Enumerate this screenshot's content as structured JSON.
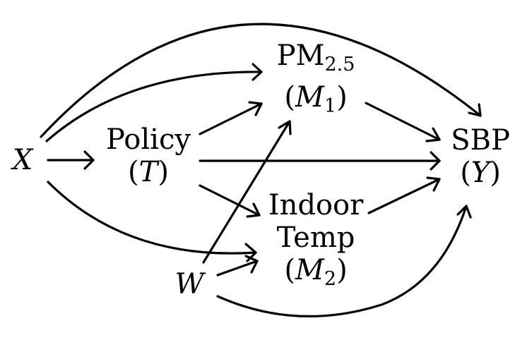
{
  "nodes": {
    "x": {
      "label": "X"
    },
    "t": {
      "line1": "Policy",
      "sym": "T"
    },
    "m1": {
      "base": "PM",
      "sub": "2.5",
      "sym": "M",
      "sym_sub": "1"
    },
    "m2": {
      "line1": "Indoor",
      "line2": "Temp",
      "sym": "M",
      "sym_sub": "2"
    },
    "y": {
      "line1": "SBP",
      "sym": "Y"
    },
    "w": {
      "label": "W"
    }
  },
  "edges": [
    {
      "from": "X",
      "to": "Policy (T)"
    },
    {
      "from": "X",
      "to": "PM2.5 (M1)"
    },
    {
      "from": "X",
      "to": "Indoor Temp (M2)"
    },
    {
      "from": "X",
      "to": "SBP (Y)"
    },
    {
      "from": "Policy (T)",
      "to": "PM2.5 (M1)"
    },
    {
      "from": "Policy (T)",
      "to": "Indoor Temp (M2)"
    },
    {
      "from": "Policy (T)",
      "to": "SBP (Y)"
    },
    {
      "from": "PM2.5 (M1)",
      "to": "SBP (Y)"
    },
    {
      "from": "Indoor Temp (M2)",
      "to": "SBP (Y)"
    },
    {
      "from": "W",
      "to": "PM2.5 (M1)"
    },
    {
      "from": "W",
      "to": "Indoor Temp (M2)"
    },
    {
      "from": "W",
      "to": "SBP (Y)"
    }
  ]
}
